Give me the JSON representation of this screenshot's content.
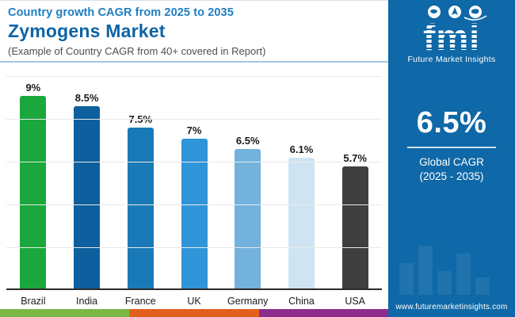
{
  "header": {
    "kicker": "Country growth CAGR from 2025 to 2035",
    "title": "Zymogens Market",
    "subtitle": "(Example of Country CAGR from 40+ covered in Report)"
  },
  "chart_data": {
    "type": "bar",
    "title": "Zymogens Market — Country growth CAGR from 2025 to 2035",
    "categories": [
      "Brazil",
      "India",
      "France",
      "UK",
      "Germany",
      "China",
      "USA"
    ],
    "values": [
      9,
      8.5,
      7.5,
      7,
      6.5,
      6.1,
      5.7
    ],
    "value_labels": [
      "9%",
      "8.5%",
      "7.5%",
      "7%",
      "6.5%",
      "6.1%",
      "5.7%"
    ],
    "bar_colors": [
      "#1AA83C",
      "#0E5F9D",
      "#1A7AB8",
      "#3094D9",
      "#72B2DD",
      "#CFE4F3",
      "#3F3F3F"
    ],
    "xlabel": "",
    "ylabel": "",
    "ylim": [
      0,
      10
    ],
    "gridline_count": 5,
    "grid": true,
    "legend": false
  },
  "sidebar": {
    "brand": "fmi",
    "brand_caption": "Future Market Insights",
    "stat_value": "6.5%",
    "stat_label_line1": "Global CAGR",
    "stat_label_line2": "(2025 - 2035)",
    "website": "www.futuremarketinsights.com"
  },
  "footer_strip_colors": [
    "#79B943",
    "#E2601C",
    "#8E2B8E"
  ],
  "colors": {
    "kicker_text": "#1E7DC1",
    "title_text": "#0D64A6",
    "subtitle_text": "#4D4D4D",
    "sidebar_bg": "#0F68A7",
    "header_rule": "#A9C7E0",
    "axis_line": "#2B2B2B",
    "gridline": "#E9E9E9",
    "label_text": "#1A1A1A"
  }
}
